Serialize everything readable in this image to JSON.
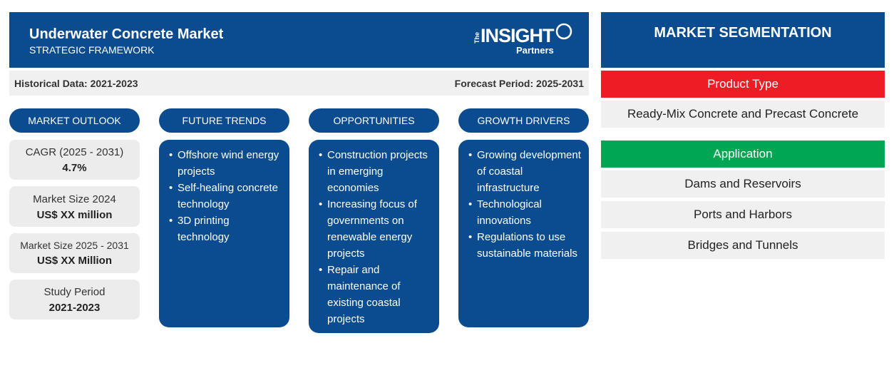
{
  "header": {
    "title": "Underwater Concrete Market",
    "subtitle": "STRATEGIC FRAMEWORK",
    "logo": {
      "the": "The",
      "insight": "INSIGHT",
      "partners": "Partners"
    }
  },
  "databar": {
    "historical": "Historical Data: 2021-2023",
    "forecast": "Forecast Period: 2025-2031"
  },
  "columns": {
    "outlook": "MARKET OUTLOOK",
    "trends": "FUTURE TRENDS",
    "opportunities": "OPPORTUNITIES",
    "drivers": "GROWTH DRIVERS"
  },
  "outlook": [
    {
      "label": "CAGR (2025 - 2031)",
      "value": "4.7%"
    },
    {
      "label": "Market Size 2024",
      "value": "US$ XX million"
    },
    {
      "label": "Market Size 2025 - 2031",
      "value": "US$ XX Million"
    },
    {
      "label": "Study Period",
      "value": "2021-2023"
    }
  ],
  "trends": [
    "Offshore wind energy projects",
    "Self-healing concrete technology",
    "3D printing technology"
  ],
  "opportunities": [
    "Construction projects in emerging economies",
    "Increasing focus of governments on renewable energy projects",
    "Repair and maintenance of existing coastal projects"
  ],
  "drivers": [
    "Growing development of coastal infrastructure",
    "Technological innovations",
    "Regulations to use sustainable materials"
  ],
  "segmentation": {
    "title": "MARKET SEGMENTATION",
    "product_type": {
      "label": "Product Type",
      "color": "#ee1c25",
      "items": [
        "Ready-Mix Concrete and Precast Concrete"
      ]
    },
    "application": {
      "label": "Application",
      "color": "#00a651",
      "items": [
        "Dams and Reservoirs",
        "Ports and Harbors",
        "Bridges and Tunnels"
      ]
    }
  },
  "colors": {
    "primary": "#0b4b8f",
    "panel": "#f0f0f0"
  }
}
